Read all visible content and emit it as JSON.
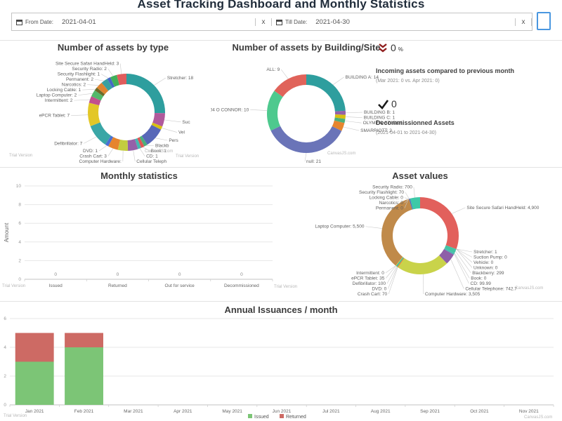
{
  "page": {
    "title": "Asset Tracking Dashboard and Monthly Statistics"
  },
  "filters": {
    "from": {
      "label": "From Date:",
      "value": "2021-04-01",
      "clear": "x"
    },
    "till": {
      "label": "Till Date:",
      "value": "2021-04-30",
      "clear": "x"
    }
  },
  "stats": {
    "incoming": {
      "value": "0",
      "unit": "%",
      "heading": "Incoming assets compared to previous month",
      "detail": "(Mar 2021: 0 vs. Apr 2021: 0)",
      "icon_color": "#8f1d1d"
    },
    "decommissioned": {
      "value": "0",
      "heading": "Decommissionned Assets",
      "detail": "(2021-04-01 to 2021-04-30)",
      "icon_color": "#1a1a1a"
    }
  },
  "watermarks": {
    "trial": "Trial Version",
    "brand": "CanvasJS.com"
  },
  "chart_data": [
    {
      "type": "pie",
      "style": "donut",
      "title": "Number of assets by type",
      "slices": [
        {
          "label": "Stretcher: 18",
          "value": 18,
          "color": "#2e9e9e"
        },
        {
          "label": "Suc",
          "value": 4,
          "color": "#b05a9c"
        },
        {
          "label": "Vel",
          "value": 1,
          "color": "#d8c010"
        },
        {
          "label": "Pers",
          "value": 6,
          "color": "#5868b8"
        },
        {
          "label": "Blackb",
          "value": 1,
          "color": "#4caf79"
        },
        {
          "label": "Book: 1",
          "value": 1,
          "color": "#e05555"
        },
        {
          "label": "CD: 1",
          "value": 1,
          "color": "#46b8b0"
        },
        {
          "label": "Cellular Teleph",
          "value": 3,
          "color": "#9561a8"
        },
        {
          "label": "Computer Hardware:",
          "value": 3,
          "color": "#c3cc3f"
        },
        {
          "label": "Crash Cart: 3",
          "value": 3,
          "color": "#e6852e"
        },
        {
          "label": "DVD: 1",
          "value": 1,
          "color": "#4a6fd4"
        },
        {
          "label": "Defibrillator: 7",
          "value": 7,
          "color": "#3aa6a6"
        },
        {
          "label": "ePCR Tablet: 7",
          "value": 7,
          "color": "#e3c727"
        },
        {
          "label": "Intermittent: 2",
          "value": 2,
          "color": "#c2508e"
        },
        {
          "label": "Laptop Computer: 2",
          "value": 2,
          "color": "#53b86a"
        },
        {
          "label": "Locking Cable: 1",
          "value": 1,
          "color": "#6b6b2a"
        },
        {
          "label": "Narcotics: 2",
          "value": 2,
          "color": "#de8430"
        },
        {
          "label": "Permanent: 2",
          "value": 2,
          "color": "#39a0a0"
        },
        {
          "label": "Security Flashlight: 1",
          "value": 1,
          "color": "#4668c6"
        },
        {
          "label": "Security Radio: 2",
          "value": 2,
          "color": "#41b059"
        },
        {
          "label": "Site Secure Safari HandHeld: 3",
          "value": 3,
          "color": "#e05c5c"
        }
      ]
    },
    {
      "type": "pie",
      "style": "donut",
      "title": "Number of assets by Building/Site",
      "slices": [
        {
          "label": "BUILDING A: 14",
          "value": 14,
          "color": "#2e9e9e"
        },
        {
          "label": "BUILDING B: 1",
          "value": 1,
          "color": "#9561a8"
        },
        {
          "label": "BUILDING C: 1",
          "value": 1,
          "color": "#d8c010"
        },
        {
          "label": "OLYMPIC STADIUM: 1",
          "value": 1,
          "color": "#4caf79"
        },
        {
          "label": "SMARRIOTT: 2",
          "value": 2,
          "color": "#e6852e"
        },
        {
          "label": "null: 21",
          "value": 21,
          "color": "#6a74b8"
        },
        {
          "label": "304 O CONNOR: 10",
          "value": 10,
          "color": "#4ec98e"
        },
        {
          "label": "ALL: 9",
          "value": 9,
          "color": "#e0635a"
        }
      ]
    },
    {
      "type": "bar",
      "title": "Monthly statistics",
      "ylabel": "Amount",
      "ylim": [
        0,
        10
      ],
      "yticks": [
        0,
        2,
        4,
        6,
        8,
        10
      ],
      "categories": [
        "Issued",
        "Returned",
        "Out for service",
        "Decommissioned"
      ],
      "values": [
        0,
        0,
        0,
        0
      ],
      "value_labels": [
        "0",
        "0",
        "0",
        "0"
      ]
    },
    {
      "type": "pie",
      "style": "donut",
      "title": "Asset values",
      "slices": [
        {
          "label": "Site Secure Safari HandHeld: 4,900",
          "value": 4900,
          "color": "#e2605c"
        },
        {
          "label": "Stretcher: 1",
          "value": 1,
          "color": "#2e9e9e"
        },
        {
          "label": "Suction Pump: 0",
          "value": 0,
          "color": "#b05a9c"
        },
        {
          "label": "Vehicle: 0",
          "value": 0,
          "color": "#d8c010"
        },
        {
          "label": "Unknown: 0",
          "value": 0,
          "color": "#5868b8"
        },
        {
          "label": "Blackberry: 299",
          "value": 299,
          "color": "#45c4a4"
        },
        {
          "label": "Book: 0",
          "value": 0,
          "color": "#e05555"
        },
        {
          "label": "CD: 99.99",
          "value": 99.99,
          "color": "#46b8b0"
        },
        {
          "label": "Cellular Telephone: 742.7",
          "value": 742.7,
          "color": "#8e5fa8"
        },
        {
          "label": "Computer Hardware: 3,505",
          "value": 3505,
          "color": "#c9d34a"
        },
        {
          "label": "Crash Cart: 70",
          "value": 70,
          "color": "#e6852e"
        },
        {
          "label": "DVD: 0",
          "value": 0,
          "color": "#4a6fd4"
        },
        {
          "label": "Defibrillator: 100",
          "value": 100,
          "color": "#3bbd9e"
        },
        {
          "label": "ePCR Tablet: 35",
          "value": 35,
          "color": "#e3c727"
        },
        {
          "label": "Intermittent: 0",
          "value": 0,
          "color": "#c2508e"
        },
        {
          "label": "Laptop Computer: 5,500",
          "value": 5500,
          "color": "#c08a4a"
        },
        {
          "label": "Locking Cable: 0",
          "value": 0,
          "color": "#6b6b2a"
        },
        {
          "label": "Narcotics: 0",
          "value": 0,
          "color": "#de8430"
        },
        {
          "label": "Permanent: 0",
          "value": 0,
          "color": "#39a0a0"
        },
        {
          "label": "Security Flashlight: 70",
          "value": 70,
          "color": "#4668c6"
        },
        {
          "label": "Security Radio: 700",
          "value": 700,
          "color": "#3ec9a7"
        }
      ]
    },
    {
      "type": "bar",
      "stacked": true,
      "title": "Annual Issuances / month",
      "ylim": [
        0,
        6
      ],
      "yticks": [
        0,
        2,
        4,
        6
      ],
      "categories": [
        "Jan 2021",
        "Feb 2021",
        "Mar 2021",
        "Apr 2021",
        "May 2021",
        "Jun 2021",
        "Jul 2021",
        "Aug 2021",
        "Sep 2021",
        "Oct 2021",
        "Nov 2021"
      ],
      "series": [
        {
          "name": "Issued",
          "color": "#7cc576",
          "values": [
            3,
            4,
            0,
            0,
            0,
            0,
            0,
            0,
            0,
            0,
            0
          ]
        },
        {
          "name": "Returned",
          "color": "#cd6a64",
          "values": [
            2,
            1,
            0,
            0,
            0,
            0,
            0,
            0,
            0,
            0,
            0
          ]
        }
      ],
      "legend_position": "bottom-center"
    }
  ]
}
